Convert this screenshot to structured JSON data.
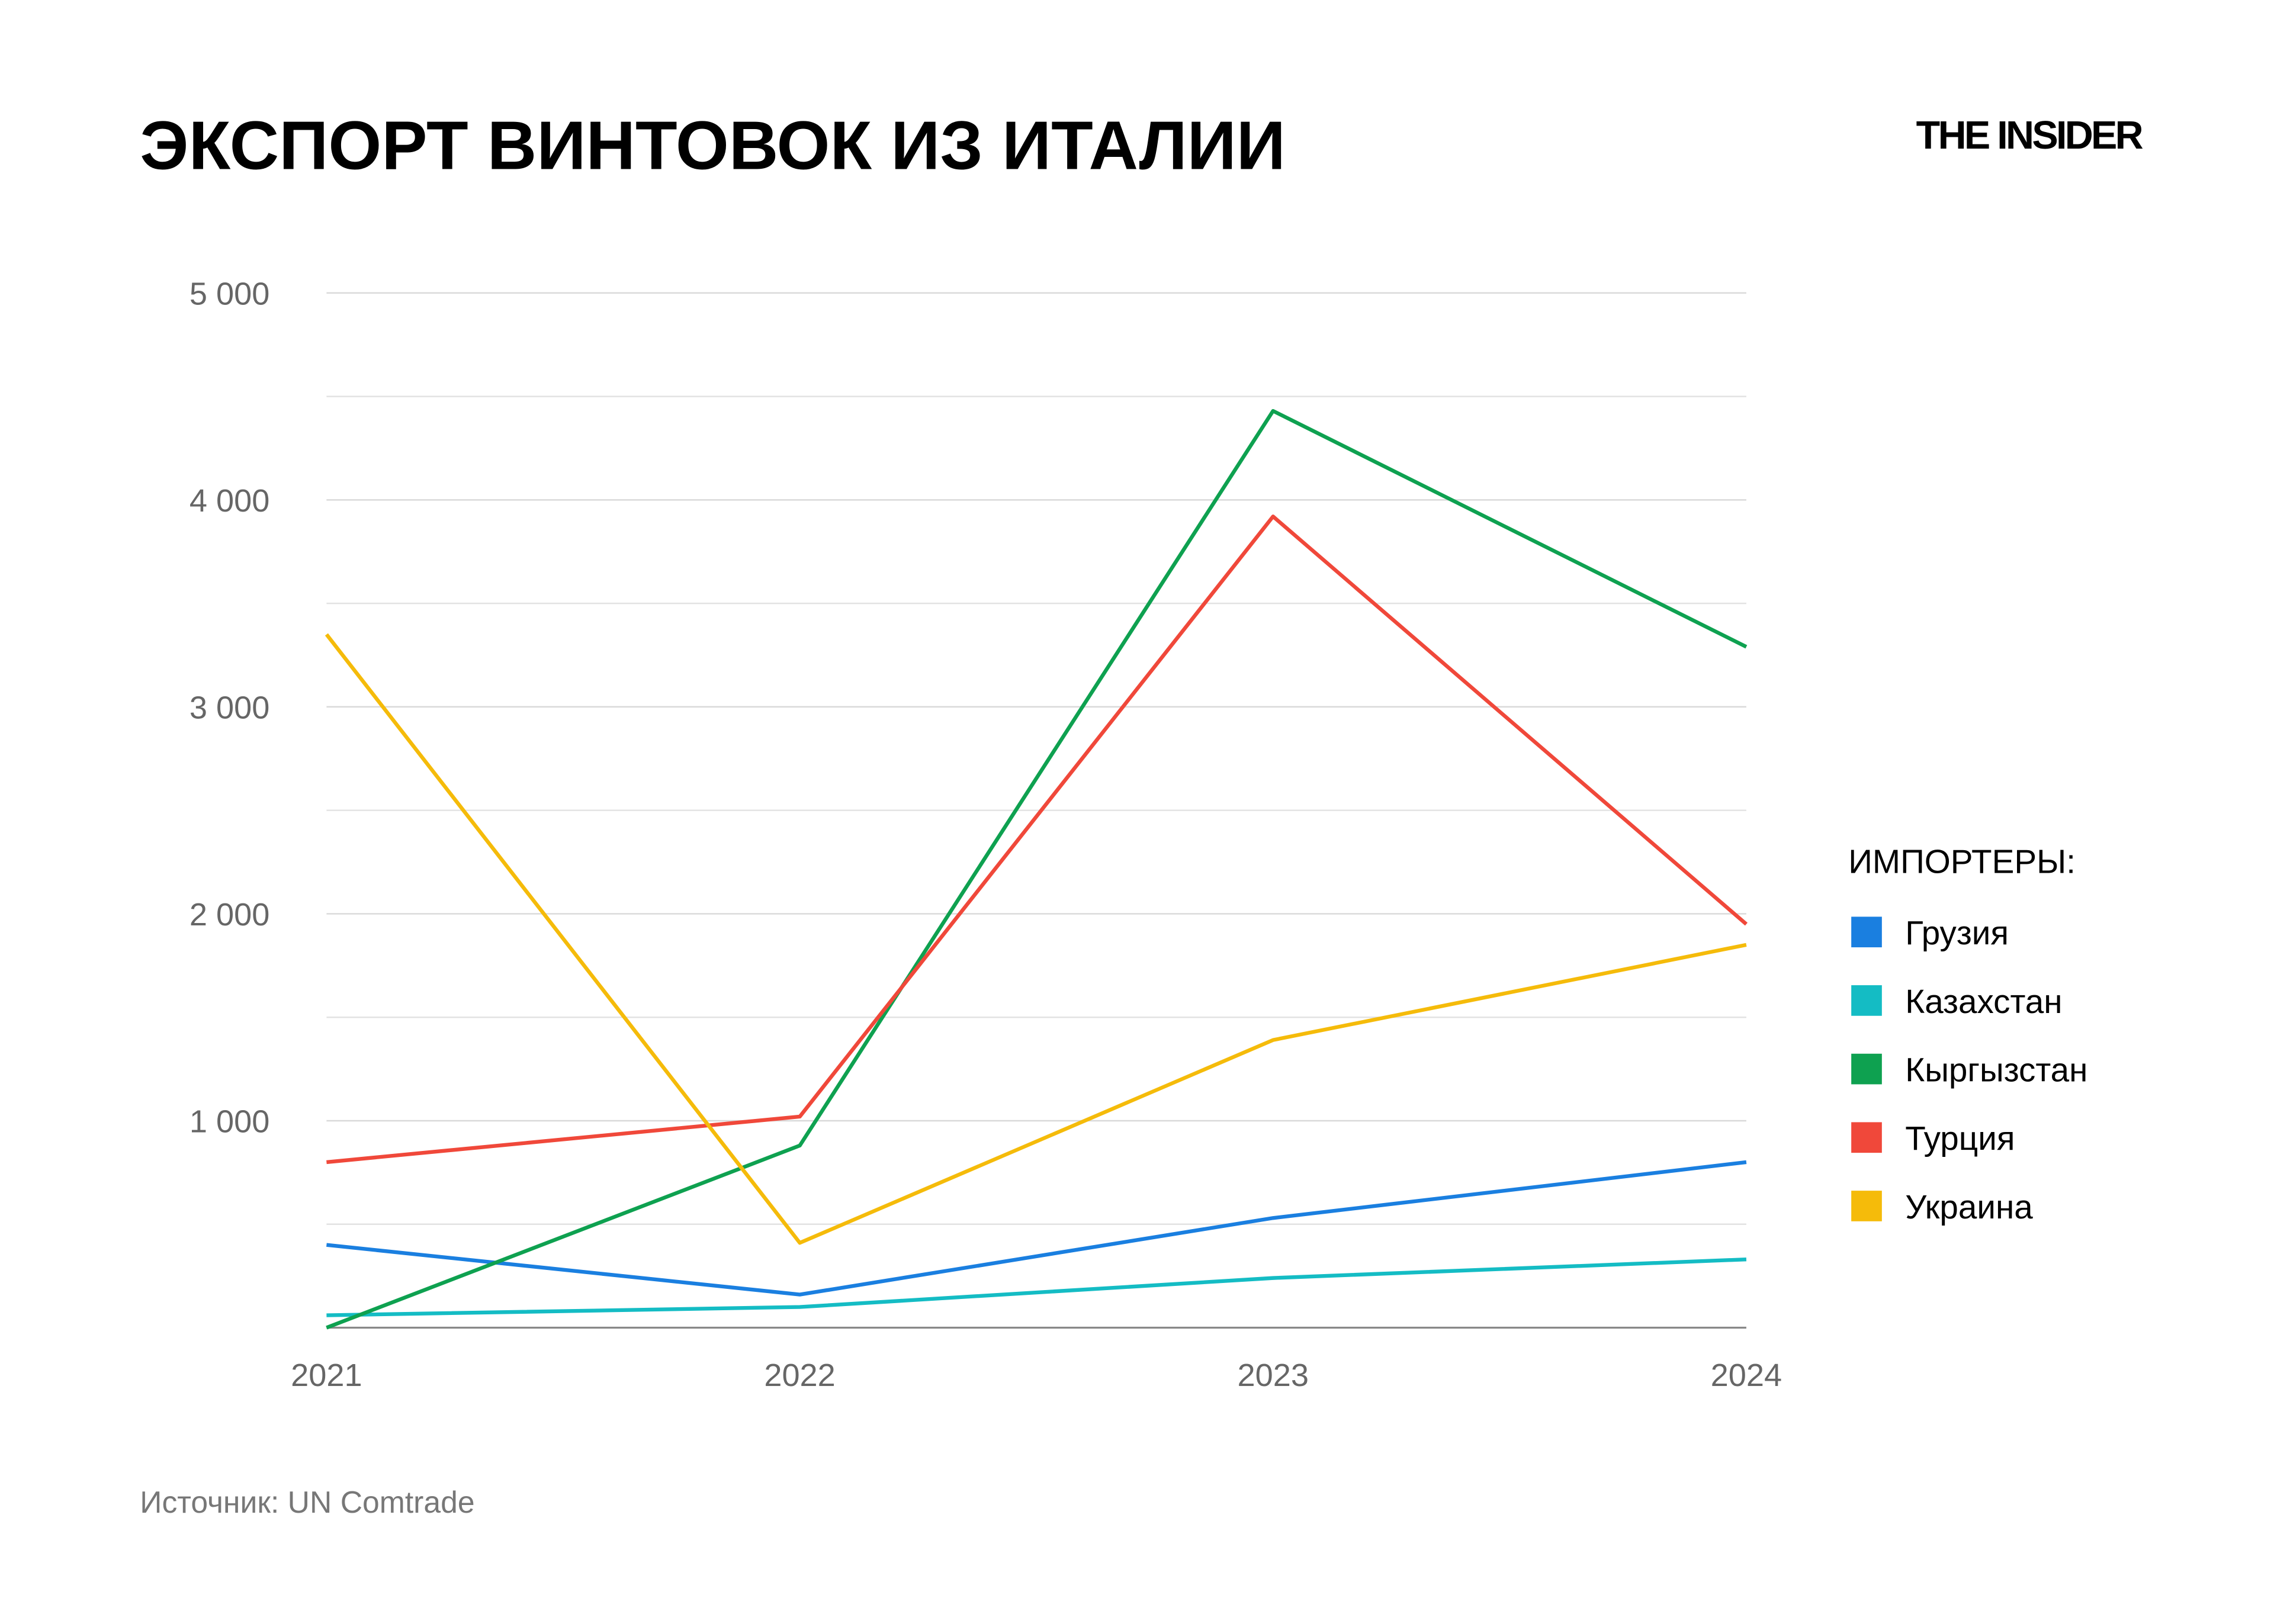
{
  "chart_data": {
    "type": "line",
    "title": "ЭКСПОРТ ВИНТОВОК ИЗ ИТАЛИИ",
    "logo": "THE INSIDER",
    "source": "Источник: UN Comtrade",
    "legend_title": "ИМПОРТЕРЫ:",
    "legend_position": "right",
    "grid": true,
    "categories": [
      "2021",
      "2022",
      "2023",
      "2024"
    ],
    "ylim": [
      0,
      5000
    ],
    "yticks": [
      {
        "value": 1000,
        "label": "1 000"
      },
      {
        "value": 2000,
        "label": "2 000"
      },
      {
        "value": 3000,
        "label": "3 000"
      },
      {
        "value": 4000,
        "label": "4 000"
      },
      {
        "value": 5000,
        "label": "5 000"
      }
    ],
    "minor_yticks": [
      500,
      1500,
      2500,
      3500,
      4500
    ],
    "series": [
      {
        "name": "Грузия",
        "color": "#1a7fe0",
        "values": [
          400,
          160,
          530,
          800
        ]
      },
      {
        "name": "Казахстан",
        "color": "#14bcc4",
        "values": [
          60,
          100,
          240,
          330
        ]
      },
      {
        "name": "Кыргызстан",
        "color": "#0ea150",
        "values": [
          0,
          880,
          4430,
          3290
        ]
      },
      {
        "name": "Турция",
        "color": "#f0483a",
        "values": [
          800,
          1020,
          3920,
          1950
        ]
      },
      {
        "name": "Украина",
        "color": "#f5bb0a",
        "values": [
          3350,
          410,
          1390,
          1850
        ]
      }
    ]
  }
}
